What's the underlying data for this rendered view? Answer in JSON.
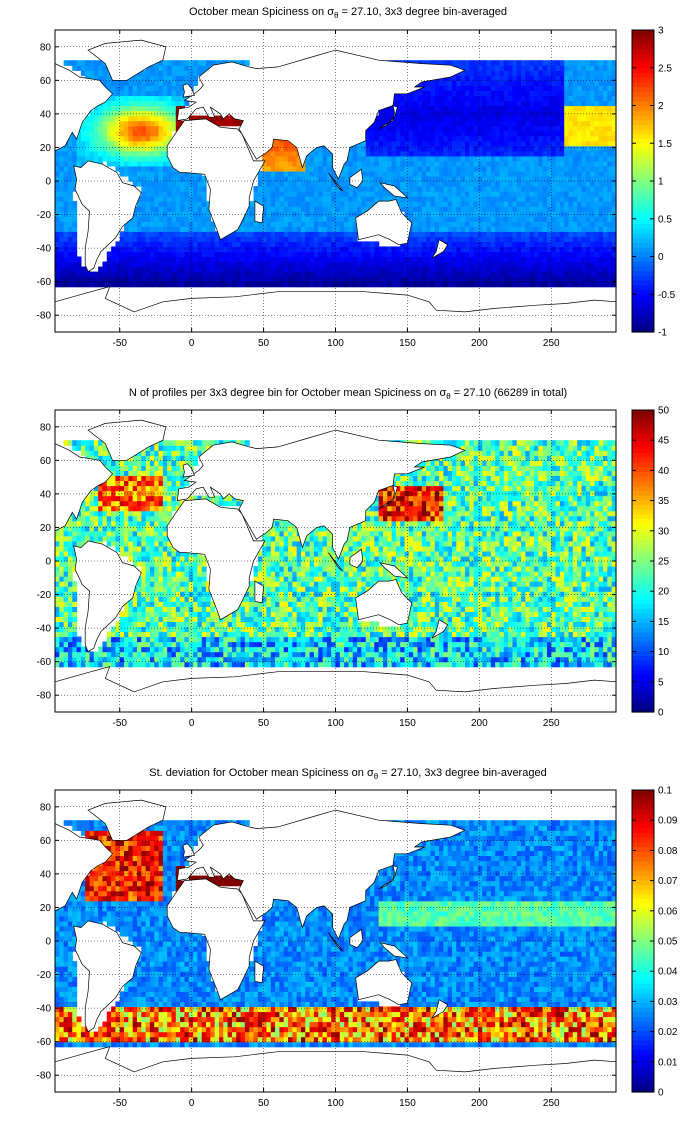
{
  "chart_data": [
    {
      "type": "heatmap",
      "title_parts": [
        "October mean Spiciness on ",
        "σ",
        "θ",
        " = 27.10, 3x3 degree bin-averaged"
      ],
      "xlim": [
        -95,
        295
      ],
      "ylim": [
        -90,
        90
      ],
      "x_ticks": [
        -50,
        0,
        50,
        100,
        150,
        200,
        250
      ],
      "y_ticks": [
        -80,
        -60,
        -40,
        -20,
        0,
        20,
        40,
        60,
        80
      ],
      "grid": true,
      "colorbar": {
        "colormap": "jet",
        "range": [
          -1,
          3
        ],
        "ticks": [
          -1,
          -0.5,
          0,
          0.5,
          1,
          1.5,
          2,
          2.5,
          3
        ],
        "tick_labels": [
          "-1",
          "-0.5",
          "0",
          "0.5",
          "1",
          "1.5",
          "2",
          "2.5",
          "3"
        ]
      },
      "field_description": "Basin values: equatorial/southern ocean ~0 to -0.8, North Atlantic subtropical gyre ~2.0-2.4, Mediterranean outflow ~3, Arabian Sea ~2.2, North Pacific ~-0.6 to -0.2"
    },
    {
      "type": "heatmap",
      "title": "N of profiles per 3x3 degree bin for October mean Spiciness on σθ = 27.10 (66289 in total)",
      "title_parts": [
        "N of profiles per 3x3 degree bin for October mean Spiciness on ",
        "σ",
        "θ",
        " = 27.10 (66289 in total)"
      ],
      "total_profiles": 66289,
      "xlim": [
        -95,
        295
      ],
      "ylim": [
        -90,
        90
      ],
      "x_ticks": [
        -50,
        0,
        50,
        100,
        150,
        200,
        250
      ],
      "y_ticks": [
        -80,
        -60,
        -40,
        -20,
        0,
        20,
        40,
        60,
        80
      ],
      "grid": true,
      "colorbar": {
        "colormap": "jet",
        "range": [
          0,
          50
        ],
        "ticks": [
          0,
          5,
          10,
          15,
          20,
          25,
          30,
          35,
          40,
          45,
          50
        ],
        "tick_labels": [
          "0",
          "5",
          "10",
          "15",
          "20",
          "25",
          "30",
          "35",
          "40",
          "45",
          "50"
        ]
      }
    },
    {
      "type": "heatmap",
      "title_parts": [
        "St. deviation for October mean Spiciness on ",
        "σ",
        "θ",
        " = 27.10, 3x3 degree bin-averaged"
      ],
      "xlim": [
        -95,
        295
      ],
      "ylim": [
        -90,
        90
      ],
      "x_ticks": [
        -50,
        0,
        50,
        100,
        150,
        200,
        250
      ],
      "y_ticks": [
        -80,
        -60,
        -40,
        -20,
        0,
        20,
        40,
        60,
        80
      ],
      "grid": true,
      "colorbar": {
        "colormap": "jet",
        "range": [
          0,
          0.1
        ],
        "ticks": [
          0,
          0.01,
          0.02,
          0.03,
          0.04,
          0.05,
          0.06,
          0.07,
          0.08,
          0.09,
          0.1
        ],
        "tick_labels": [
          "0",
          "0.01",
          "0.02",
          "0.03",
          "0.04",
          "0.05",
          "0.06",
          "0.07",
          "0.08",
          "0.09",
          "0.1"
        ]
      }
    }
  ]
}
